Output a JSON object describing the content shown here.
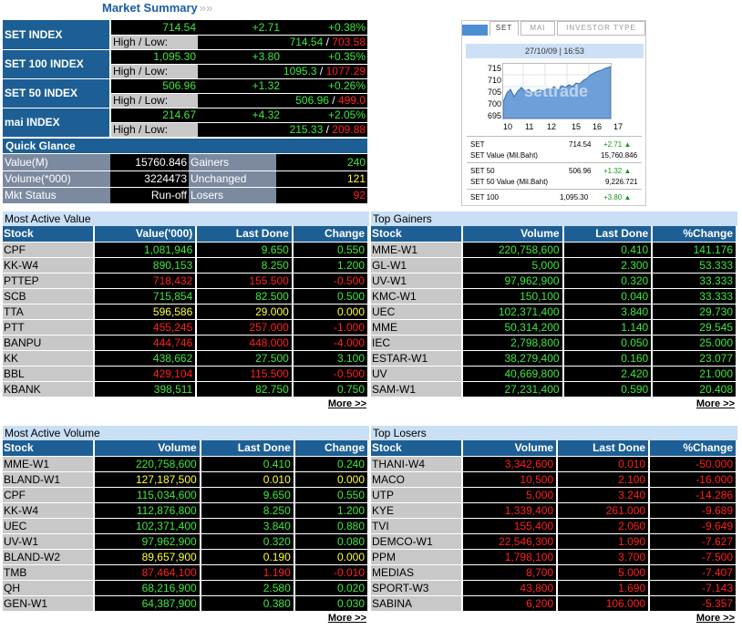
{
  "page_title": "Market Summary",
  "indices": [
    {
      "name": "SET INDEX",
      "last": "714.54",
      "change": "+2.71",
      "pct": "+0.38%",
      "hl_label": "High / Low:",
      "high": "714.54",
      "low": "703.58"
    },
    {
      "name": "SET 100 INDEX",
      "last": "1,095.30",
      "change": "+3.80",
      "pct": "+0.35%",
      "hl_label": "High / Low:",
      "high": "1095.3",
      "low": "1077.29"
    },
    {
      "name": "SET 50 INDEX",
      "last": "506.96",
      "change": "+1.32",
      "pct": "+0.26%",
      "hl_label": "High / Low:",
      "high": "506.96",
      "low": "499.0"
    },
    {
      "name": "mai INDEX",
      "last": "214.67",
      "change": "+4.32",
      "pct": "+2.05%",
      "hl_label": "High / Low:",
      "high": "215.33",
      "low": "209.88"
    }
  ],
  "quick_glance": {
    "title": "Quick Glance",
    "rows": [
      {
        "label": "Value(M)",
        "value": "15760.846",
        "label2": "Gainers",
        "value2": "240"
      },
      {
        "label": "Volume(*000)",
        "value": "3224473",
        "label2": "Unchanged",
        "value2": "121"
      },
      {
        "label": "Mkt Status",
        "value": "Run-off",
        "label2": "Losers",
        "value2": "92"
      }
    ]
  },
  "widget": {
    "tabs": [
      "SET",
      "MAI",
      "INVESTOR TYPE"
    ],
    "datetime": "27/10/09 | 16:53",
    "watermark": "settrade",
    "y_ticks": [
      "715",
      "710",
      "705",
      "700",
      "695"
    ],
    "x_ticks": [
      "10",
      "11",
      "12",
      "15",
      "16",
      "17"
    ],
    "rows": [
      {
        "label": "SET",
        "value": "714.54",
        "change": "+2.71 ▲"
      },
      {
        "label": "SET Value (Mil.Baht)",
        "value": "15,760.846",
        "change": ""
      },
      {
        "label": "SET 50",
        "value": "506.96",
        "change": "+1.32 ▲"
      },
      {
        "label": "SET 50 Value (Mil.Baht)",
        "value": "9,226.721",
        "change": ""
      },
      {
        "label": "SET 100",
        "value": "1,095.30",
        "change": "+3.80 ▲"
      }
    ]
  },
  "more_label": "More >>",
  "most_active_value": {
    "title": "Most Active Value",
    "columns": [
      "Stock",
      "Value('000)",
      "Last Done",
      "Change"
    ],
    "rows": [
      {
        "stock": "CPF",
        "c1": "1,081,946",
        "c2": "9.650",
        "c3": "0.550",
        "color": "g"
      },
      {
        "stock": "KK-W4",
        "c1": "890,153",
        "c2": "8.250",
        "c3": "1.200",
        "color": "g"
      },
      {
        "stock": "PTTEP",
        "c1": "718,432",
        "c2": "155.500",
        "c3": "-0.500",
        "color": "r"
      },
      {
        "stock": "SCB",
        "c1": "715,854",
        "c2": "82.500",
        "c3": "0.500",
        "color": "g"
      },
      {
        "stock": "TTA",
        "c1": "596,586",
        "c2": "29.000",
        "c3": "0.000",
        "color": "y"
      },
      {
        "stock": "PTT",
        "c1": "455,245",
        "c2": "257.000",
        "c3": "-1.000",
        "color": "r"
      },
      {
        "stock": "BANPU",
        "c1": "444,746",
        "c2": "448.000",
        "c3": "-4.000",
        "color": "r"
      },
      {
        "stock": "KK",
        "c1": "438,662",
        "c2": "27.500",
        "c3": "3.100",
        "color": "g"
      },
      {
        "stock": "BBL",
        "c1": "429,104",
        "c2": "115.500",
        "c3": "-0.500",
        "color": "r"
      },
      {
        "stock": "KBANK",
        "c1": "398,511",
        "c2": "82.750",
        "c3": "0.750",
        "color": "g"
      }
    ]
  },
  "top_gainers": {
    "title": "Top Gainers",
    "columns": [
      "Stock",
      "Volume",
      "Last Done",
      "%Change"
    ],
    "rows": [
      {
        "stock": "MME-W1",
        "c1": "220,758,600",
        "c2": "0.410",
        "c3": "141.176",
        "color": "g"
      },
      {
        "stock": "GL-W1",
        "c1": "5,000",
        "c2": "2.300",
        "c3": "53.333",
        "color": "g"
      },
      {
        "stock": "UV-W1",
        "c1": "97,962,900",
        "c2": "0.320",
        "c3": "33.333",
        "color": "g"
      },
      {
        "stock": "KMC-W1",
        "c1": "150,100",
        "c2": "0.040",
        "c3": "33.333",
        "color": "g"
      },
      {
        "stock": "UEC",
        "c1": "102,371,400",
        "c2": "3.840",
        "c3": "29.730",
        "color": "g"
      },
      {
        "stock": "MME",
        "c1": "50,314,200",
        "c2": "1.140",
        "c3": "29.545",
        "color": "g"
      },
      {
        "stock": "IEC",
        "c1": "2,798,800",
        "c2": "0.050",
        "c3": "25.000",
        "color": "g"
      },
      {
        "stock": "ESTAR-W1",
        "c1": "38,279,400",
        "c2": "0.160",
        "c3": "23.077",
        "color": "g"
      },
      {
        "stock": "UV",
        "c1": "40,669,800",
        "c2": "2.420",
        "c3": "21.000",
        "color": "g"
      },
      {
        "stock": "SAM-W1",
        "c1": "27,231,400",
        "c2": "0.590",
        "c3": "20.408",
        "color": "g"
      }
    ]
  },
  "most_active_volume": {
    "title": "Most Active Volume",
    "columns": [
      "Stock",
      "Volume",
      "Last Done",
      "Change"
    ],
    "rows": [
      {
        "stock": "MME-W1",
        "c1": "220,758,600",
        "c2": "0.410",
        "c3": "0.240",
        "color": "g"
      },
      {
        "stock": "BLAND-W1",
        "c1": "127,187,500",
        "c2": "0.010",
        "c3": "0.000",
        "color": "y"
      },
      {
        "stock": "CPF",
        "c1": "115,034,600",
        "c2": "9.650",
        "c3": "0.550",
        "color": "g"
      },
      {
        "stock": "KK-W4",
        "c1": "112,876,800",
        "c2": "8.250",
        "c3": "1.200",
        "color": "g"
      },
      {
        "stock": "UEC",
        "c1": "102,371,400",
        "c2": "3.840",
        "c3": "0.880",
        "color": "g"
      },
      {
        "stock": "UV-W1",
        "c1": "97,962,900",
        "c2": "0.320",
        "c3": "0.080",
        "color": "g"
      },
      {
        "stock": "BLAND-W2",
        "c1": "89,657,900",
        "c2": "0.190",
        "c3": "0.000",
        "color": "y"
      },
      {
        "stock": "TMB",
        "c1": "87,464,100",
        "c2": "1.190",
        "c3": "-0.010",
        "color": "r"
      },
      {
        "stock": "QH",
        "c1": "68,216,900",
        "c2": "2.580",
        "c3": "0.020",
        "color": "g"
      },
      {
        "stock": "GEN-W1",
        "c1": "64,387,900",
        "c2": "0.380",
        "c3": "0.030",
        "color": "g"
      }
    ]
  },
  "top_losers": {
    "title": "Top Losers",
    "columns": [
      "Stock",
      "Volume",
      "Last Done",
      "%Change"
    ],
    "rows": [
      {
        "stock": "THANI-W4",
        "c1": "3,342,600",
        "c2": "0.010",
        "c3": "-50.000",
        "color": "r"
      },
      {
        "stock": "MACO",
        "c1": "10,500",
        "c2": "2.100",
        "c3": "-16.000",
        "color": "r"
      },
      {
        "stock": "UTP",
        "c1": "5,000",
        "c2": "3.240",
        "c3": "-14.286",
        "color": "r"
      },
      {
        "stock": "KYE",
        "c1": "1,339,400",
        "c2": "261.000",
        "c3": "-9.689",
        "color": "r"
      },
      {
        "stock": "TVI",
        "c1": "155,400",
        "c2": "2.060",
        "c3": "-9.649",
        "color": "r"
      },
      {
        "stock": "DEMCO-W1",
        "c1": "22,546,300",
        "c2": "1.090",
        "c3": "-7.627",
        "color": "r"
      },
      {
        "stock": "PPM",
        "c1": "1,798,100",
        "c2": "3.700",
        "c3": "-7.500",
        "color": "r"
      },
      {
        "stock": "MEDIAS",
        "c1": "8,700",
        "c2": "5.000",
        "c3": "-7.407",
        "color": "r"
      },
      {
        "stock": "SPORT-W3",
        "c1": "43,800",
        "c2": "1.690",
        "c3": "-7.143",
        "color": "r"
      },
      {
        "stock": "SABINA",
        "c1": "6,200",
        "c2": "106.000",
        "c3": "-5.357",
        "color": "r"
      }
    ]
  },
  "colors": {
    "header_blue": "#1d5f94",
    "green": "#3ee83e",
    "red": "#ff2020",
    "yellow": "#ffff30"
  }
}
